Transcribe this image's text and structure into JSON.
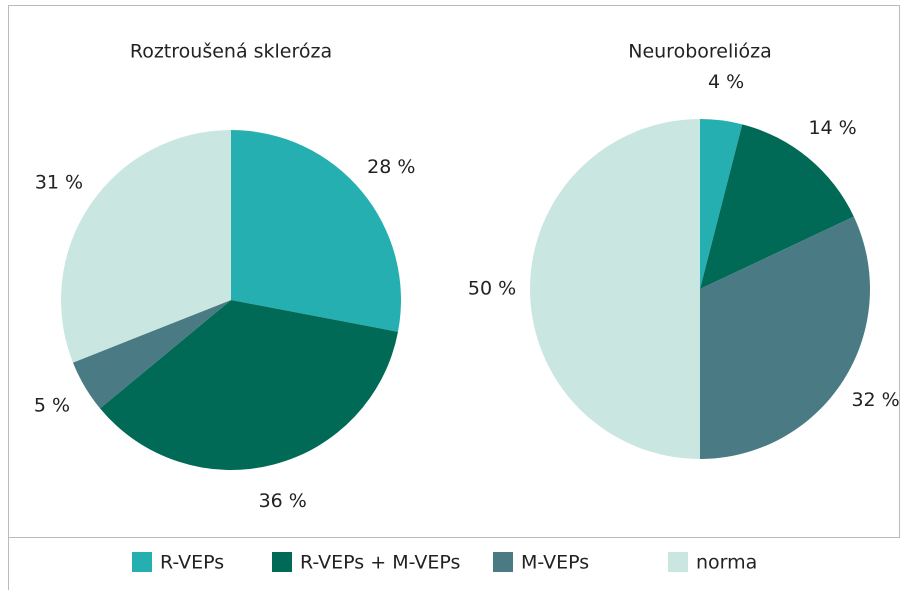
{
  "chart_data": [
    {
      "type": "pie",
      "title": "Roztroušená skleróza",
      "values": [
        28,
        36,
        5,
        31
      ],
      "value_labels": [
        "28 %",
        "36 %",
        "5 %",
        "31 %"
      ],
      "colors": [
        "#26afb0",
        "#006a56",
        "#4a7b84",
        "#c9e6e1"
      ]
    },
    {
      "type": "pie",
      "title": "Neuroborelióza",
      "values": [
        4,
        14,
        32,
        50
      ],
      "value_labels": [
        "4 %",
        "14 %",
        "32 %",
        "50 %"
      ],
      "colors": [
        "#26afb0",
        "#006a56",
        "#4a7b84",
        "#c9e6e1"
      ]
    }
  ],
  "legend": {
    "items": [
      {
        "name": "R-VEPs",
        "color": "#26afb0"
      },
      {
        "name": "R-VEPs + M-VEPs",
        "color": "#006a56"
      },
      {
        "name": "M-VEPs",
        "color": "#4a7b84"
      },
      {
        "name": "norma",
        "color": "#c9e6e1"
      }
    ]
  }
}
